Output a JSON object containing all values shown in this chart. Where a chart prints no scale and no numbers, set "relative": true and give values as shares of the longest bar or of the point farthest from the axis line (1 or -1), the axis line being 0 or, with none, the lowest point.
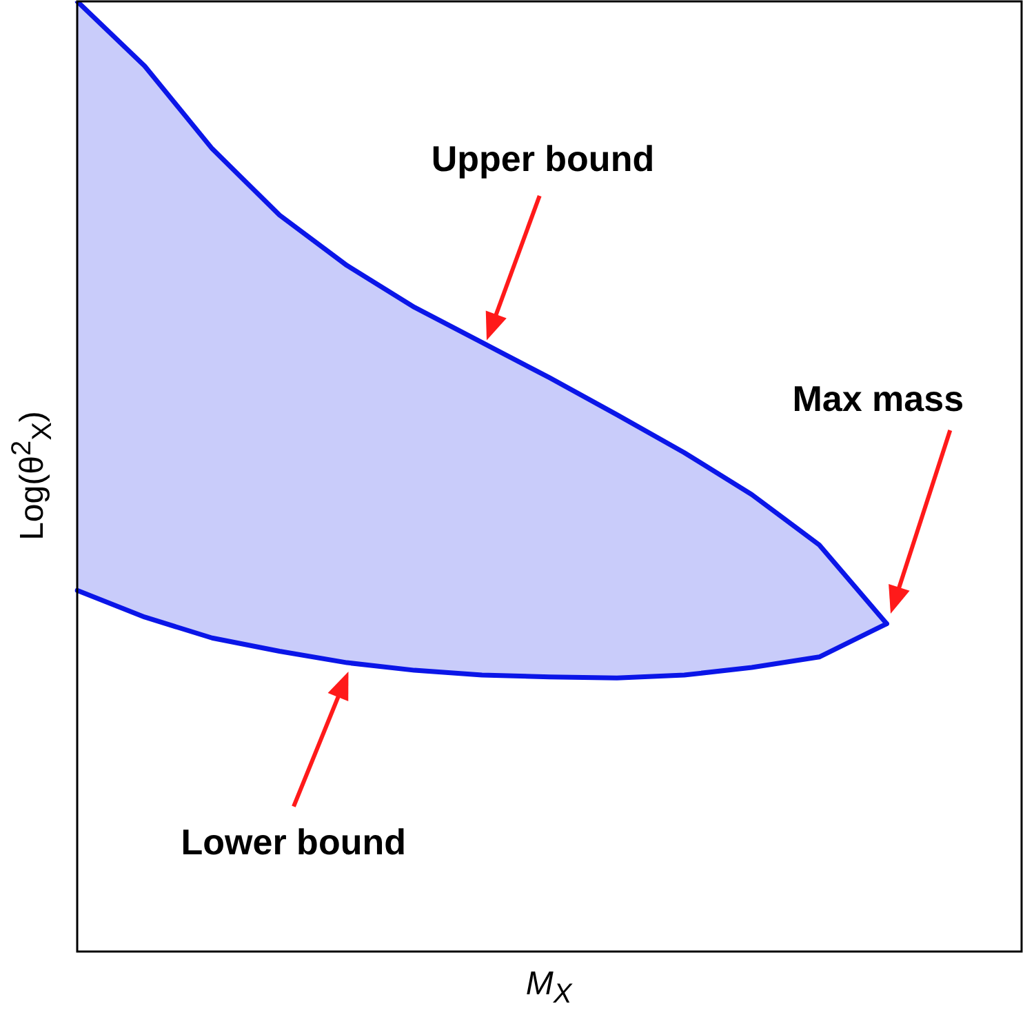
{
  "chart_data": {
    "type": "line",
    "relative": true,
    "xlabel": "M$_{X}$",
    "ylabel": "Log(θ$^{2}$$_{X}$)",
    "categories": [
      null,
      null,
      null,
      null,
      null,
      null,
      null,
      null,
      null,
      null,
      null,
      null,
      null,
      null,
      null
    ],
    "series": [
      {
        "type": "area",
        "color": "#0b16e8",
        "values": [
          1.0,
          0.932,
          0.845,
          0.775,
          0.722,
          0.678,
          0.641,
          0.604,
          0.565,
          0.525,
          0.481,
          0.428,
          0.345,
          null,
          null
        ]
      },
      {
        "type": "line",
        "color": "#0b16e8",
        "values": [
          0.38,
          0.352,
          0.33,
          0.316,
          0.304,
          0.296,
          0.291,
          0.289,
          0.288,
          0.291,
          0.299,
          0.31,
          0.345,
          null,
          null
        ]
      }
    ],
    "annotations": [
      "Upper bound",
      "Max mass",
      "Lower bound"
    ]
  }
}
